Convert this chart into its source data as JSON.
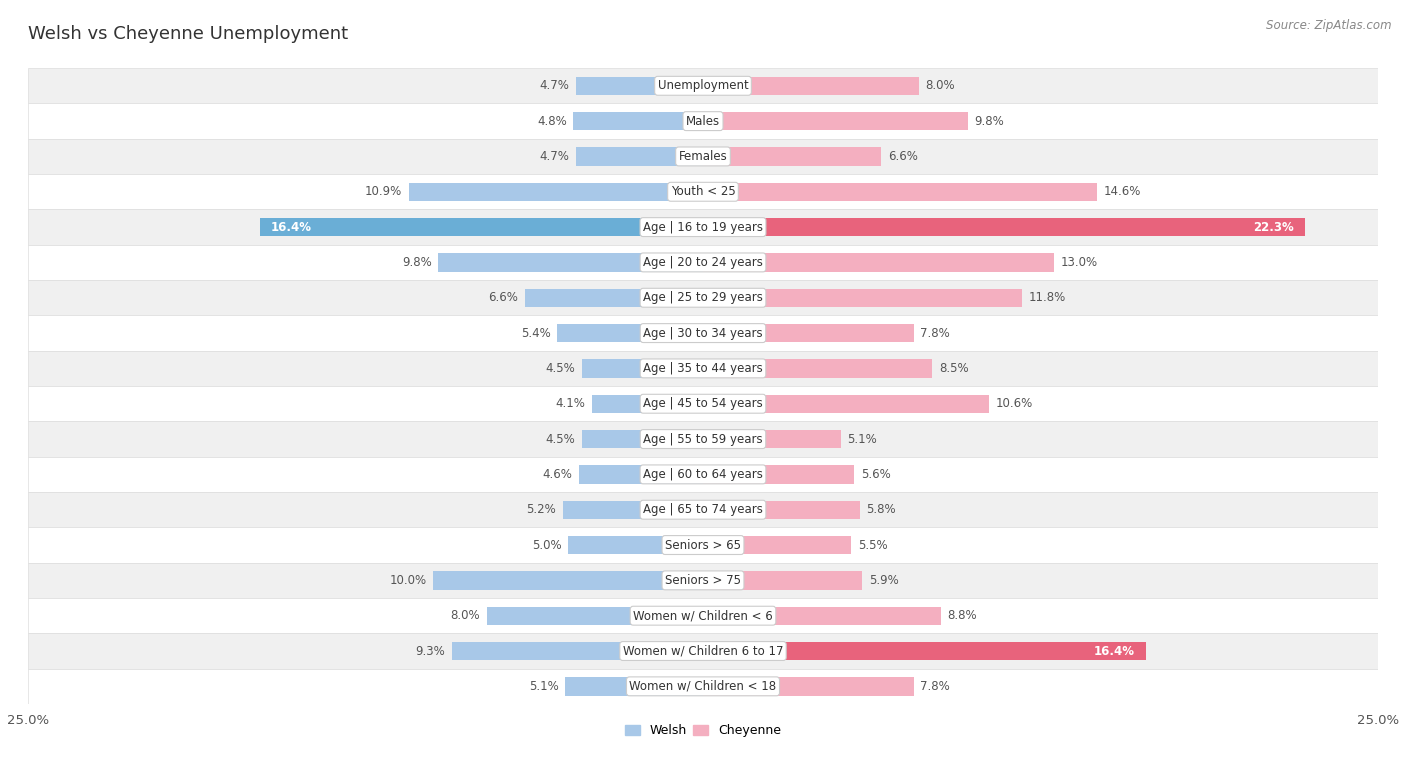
{
  "title": "Welsh vs Cheyenne Unemployment",
  "source": "Source: ZipAtlas.com",
  "categories": [
    "Unemployment",
    "Males",
    "Females",
    "Youth < 25",
    "Age | 16 to 19 years",
    "Age | 20 to 24 years",
    "Age | 25 to 29 years",
    "Age | 30 to 34 years",
    "Age | 35 to 44 years",
    "Age | 45 to 54 years",
    "Age | 55 to 59 years",
    "Age | 60 to 64 years",
    "Age | 65 to 74 years",
    "Seniors > 65",
    "Seniors > 75",
    "Women w/ Children < 6",
    "Women w/ Children 6 to 17",
    "Women w/ Children < 18"
  ],
  "welsh": [
    4.7,
    4.8,
    4.7,
    10.9,
    16.4,
    9.8,
    6.6,
    5.4,
    4.5,
    4.1,
    4.5,
    4.6,
    5.2,
    5.0,
    10.0,
    8.0,
    9.3,
    5.1
  ],
  "cheyenne": [
    8.0,
    9.8,
    6.6,
    14.6,
    22.3,
    13.0,
    11.8,
    7.8,
    8.5,
    10.6,
    5.1,
    5.6,
    5.8,
    5.5,
    5.9,
    8.8,
    16.4,
    7.8
  ],
  "welsh_color": "#a8c8e8",
  "cheyenne_color": "#f4afc0",
  "welsh_highlight_color": "#6aaed6",
  "cheyenne_highlight_color": "#e8637c",
  "highlight_indices": [
    4
  ],
  "cheyenne_highlight_indices": [
    4,
    16
  ],
  "row_bg_even": "#f0f0f0",
  "row_bg_odd": "#ffffff",
  "row_border_color": "#dddddd",
  "xlim": 25.0,
  "bar_height": 0.52,
  "label_fontsize": 8.5,
  "value_fontsize": 8.5,
  "title_fontsize": 13,
  "source_fontsize": 8.5,
  "legend_fontsize": 9
}
